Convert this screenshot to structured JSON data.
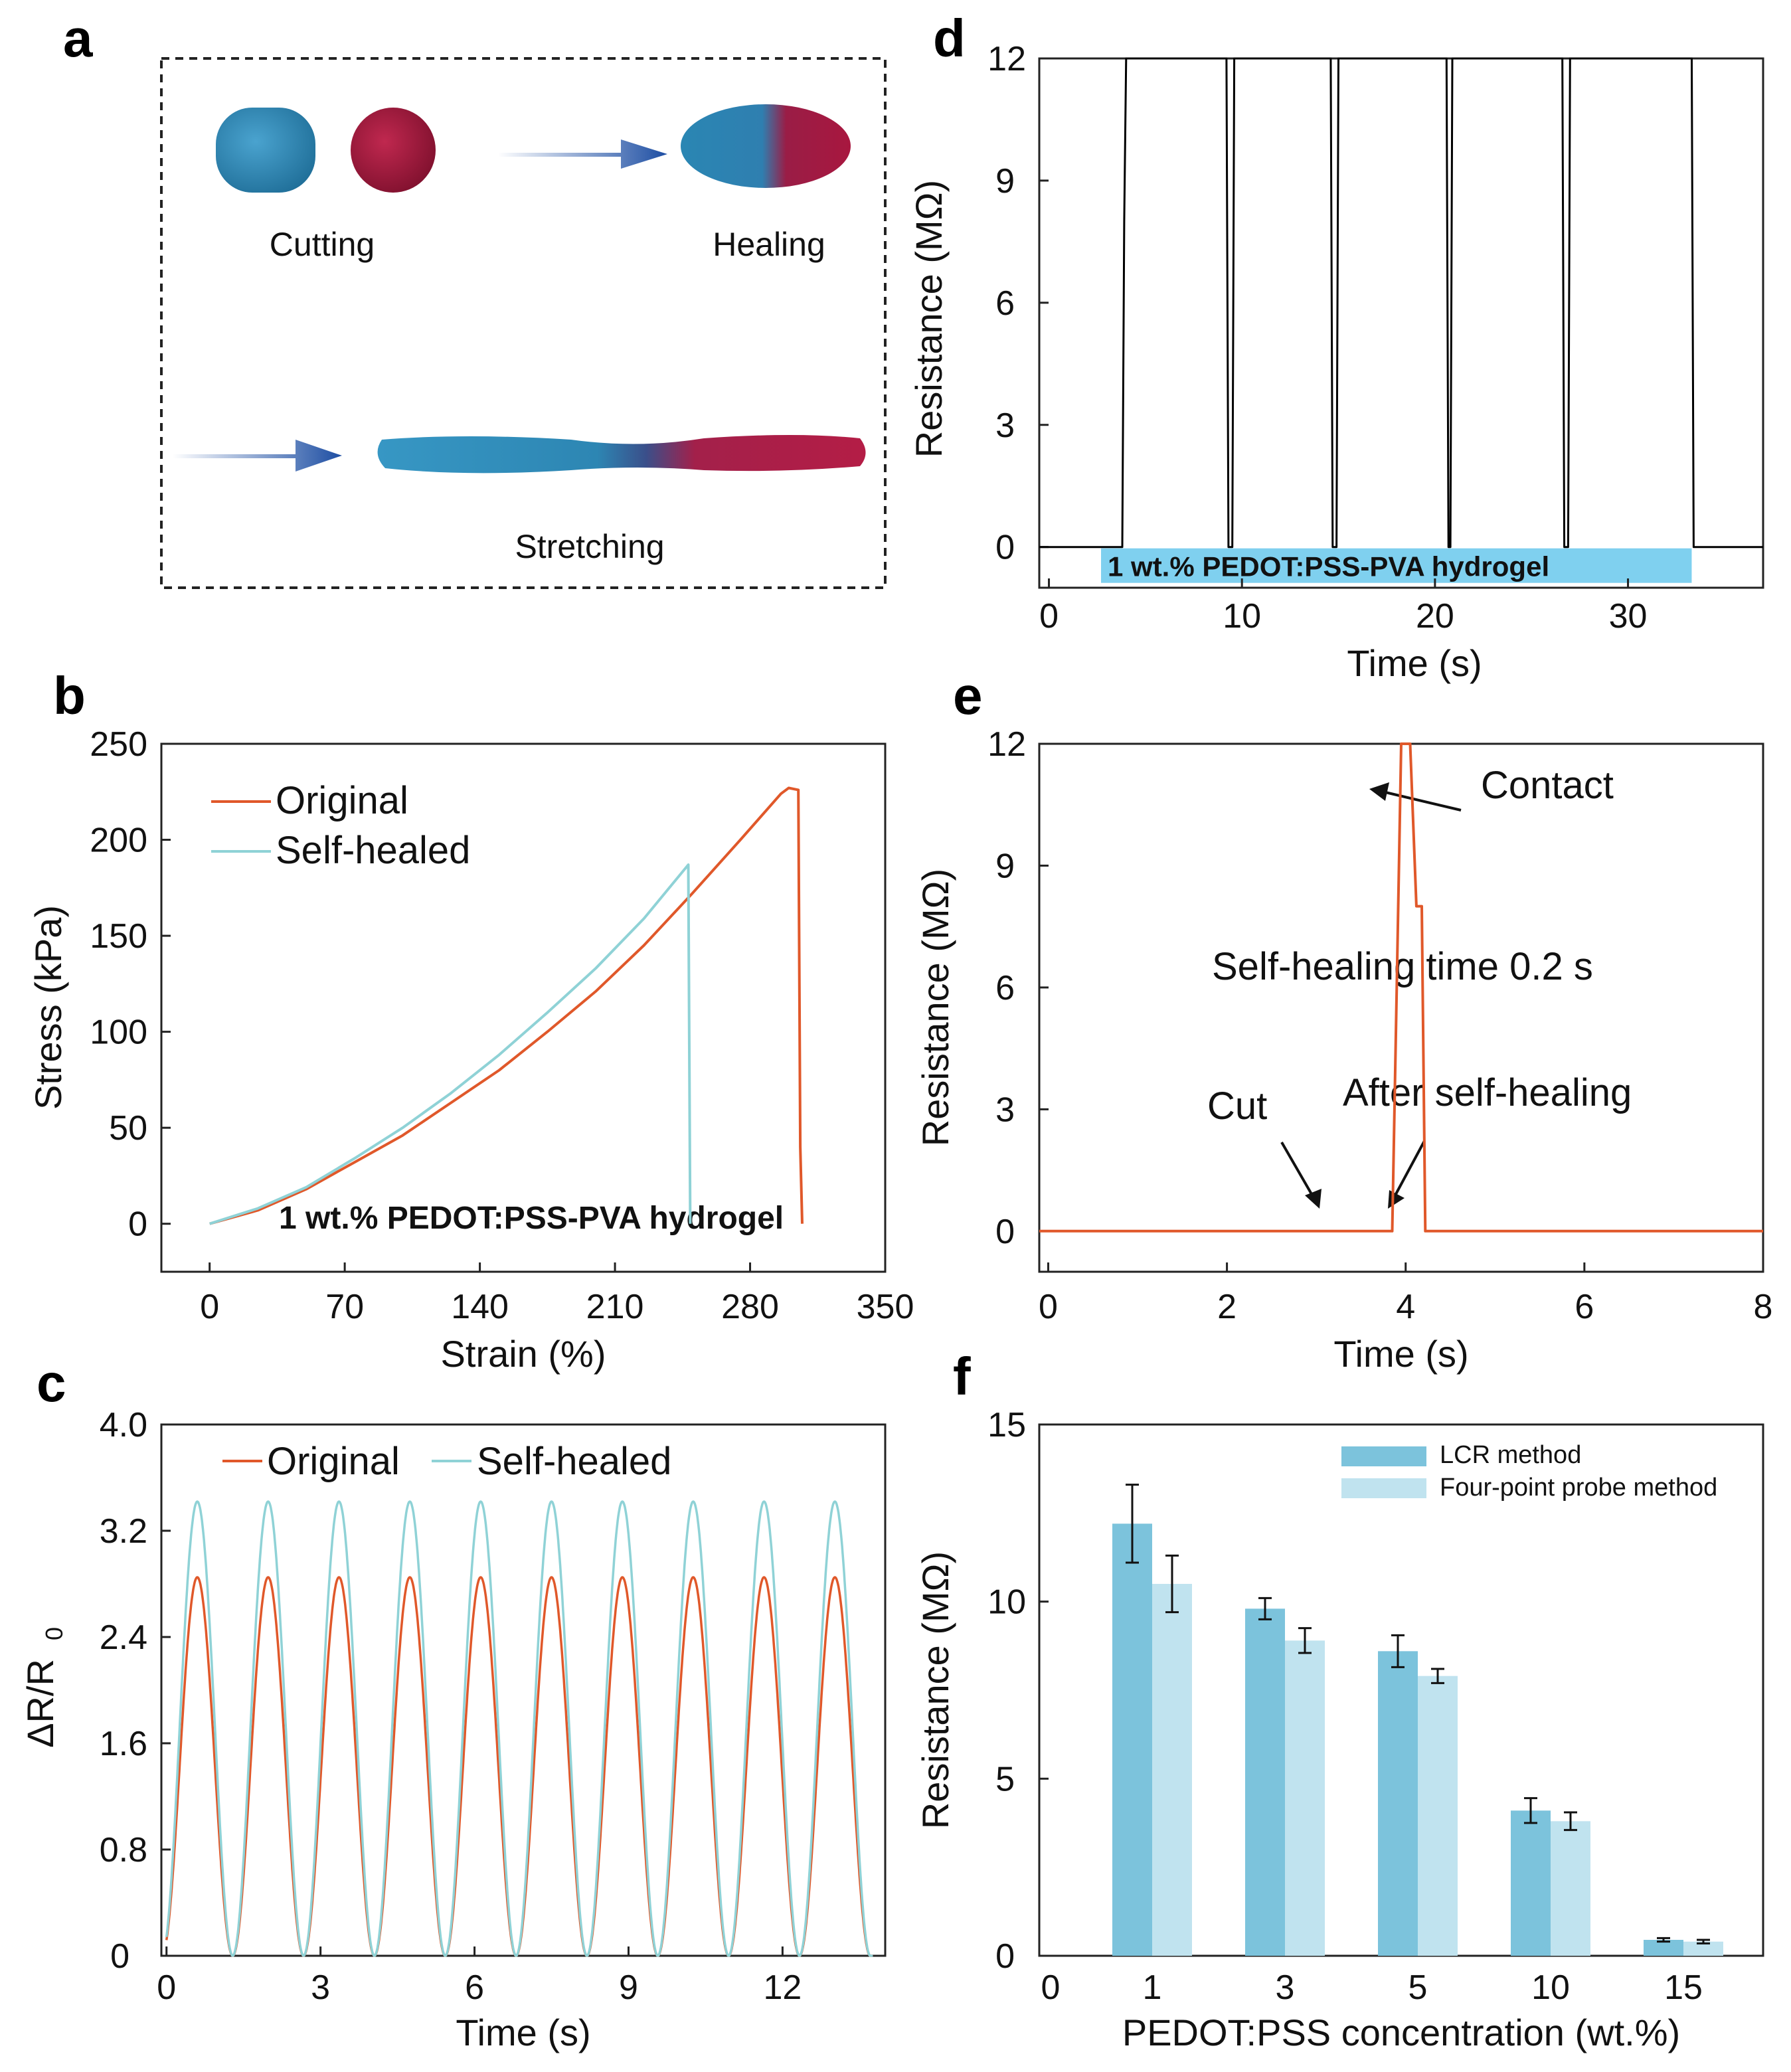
{
  "panel_labels": {
    "a": "a",
    "b": "b",
    "c": "c",
    "d": "d",
    "e": "e",
    "f": "f"
  },
  "photo": {
    "cutting": "Cutting",
    "healing": "Healing",
    "stretching": "Stretching",
    "colors": {
      "blue_gel": "#2a86b3",
      "red_gel": "#a8173f",
      "arrow": "#1d4ea3"
    }
  },
  "chart_data": [
    {
      "id": "b",
      "type": "line",
      "xlabel": "Strain (%)",
      "ylabel": "Stress (kPa)",
      "xlim": [
        -25,
        350
      ],
      "ylim": [
        -25,
        250
      ],
      "xticks": [
        0,
        70,
        140,
        210,
        280,
        350
      ],
      "yticks": [
        0,
        50,
        100,
        150,
        200,
        250
      ],
      "xtick_labels": [
        "0",
        "70",
        "140",
        "210",
        "280",
        "350"
      ],
      "ytick_labels": [
        "0",
        "50",
        "100",
        "150",
        "200",
        "250"
      ],
      "legend": [
        "Original",
        "Self-healed"
      ],
      "annotation": "1 wt.% PEDOT:PSS-PVA hydrogel",
      "series": [
        {
          "name": "Original",
          "color": "#e0582a",
          "points": [
            [
              0,
              0
            ],
            [
              25,
              7
            ],
            [
              50,
              18
            ],
            [
              75,
              32
            ],
            [
              100,
              46
            ],
            [
              125,
              63
            ],
            [
              150,
              80
            ],
            [
              175,
              100
            ],
            [
              200,
              121
            ],
            [
              225,
              145
            ],
            [
              250,
              172
            ],
            [
              275,
              200
            ],
            [
              296,
              224
            ],
            [
              300,
              227
            ],
            [
              305,
              226
            ],
            [
              306,
              40
            ],
            [
              307,
              0
            ]
          ]
        },
        {
          "name": "Self-healed",
          "color": "#8fd2d6",
          "points": [
            [
              0,
              0
            ],
            [
              25,
              8
            ],
            [
              50,
              19
            ],
            [
              75,
              34
            ],
            [
              100,
              50
            ],
            [
              125,
              68
            ],
            [
              150,
              88
            ],
            [
              175,
              110
            ],
            [
              200,
              133
            ],
            [
              225,
              159
            ],
            [
              248,
              187
            ],
            [
              249,
              0
            ]
          ]
        }
      ]
    },
    {
      "id": "c",
      "type": "line",
      "xlabel": "Time (s)",
      "ylabel": "ΔR/R0",
      "ylabel_main": "ΔR/R",
      "ylabel_sub": "0",
      "xlim": [
        -0.1,
        14
      ],
      "ylim": [
        0,
        4.0
      ],
      "xticks": [
        0,
        3,
        6,
        9,
        12
      ],
      "yticks": [
        0,
        0.8,
        1.6,
        2.4,
        3.2,
        4.0
      ],
      "xtick_labels": [
        "0",
        "3",
        "6",
        "9",
        "12"
      ],
      "ytick_labels": [
        "0",
        "0.8",
        "1.6",
        "2.4",
        "3.2",
        "4.0"
      ],
      "legend": [
        "Original",
        "Self-healed"
      ],
      "cycles": 10,
      "period": 1.38,
      "first_peak": 0.6,
      "series": [
        {
          "name": "Original",
          "color": "#e0582a",
          "peak": 2.85
        },
        {
          "name": "Self-healed",
          "color": "#8fd2d6",
          "peak": 3.42
        }
      ]
    },
    {
      "id": "d",
      "type": "line",
      "xlabel": "Time (s)",
      "ylabel": "Resistance (MΩ)",
      "xlim": [
        -0.5,
        37
      ],
      "ylim": [
        -1,
        12
      ],
      "xticks": [
        0,
        10,
        20,
        30
      ],
      "yticks": [
        0,
        3,
        6,
        9,
        12
      ],
      "xtick_labels": [
        "0",
        "10",
        "20",
        "30"
      ],
      "ytick_labels": [
        "0",
        "3",
        "6",
        "9",
        "12"
      ],
      "annotation": "1 wt.% PEDOT:PSS-PVA hydrogel",
      "annotation_color": "#7fd0ef",
      "annotation_xrange": [
        2.7,
        33.3
      ],
      "series": [
        {
          "name": "Resistance",
          "color": "#000000",
          "points": [
            [
              -0.5,
              0
            ],
            [
              3.8,
              0
            ],
            [
              3.9,
              8
            ],
            [
              4.0,
              12
            ],
            [
              9.2,
              12
            ],
            [
              9.3,
              0
            ],
            [
              9.5,
              0
            ],
            [
              9.6,
              12
            ],
            [
              14.6,
              12
            ],
            [
              14.7,
              0
            ],
            [
              14.9,
              0
            ],
            [
              15.0,
              12
            ],
            [
              20.6,
              12
            ],
            [
              20.7,
              0
            ],
            [
              20.8,
              0
            ],
            [
              20.9,
              12
            ],
            [
              26.6,
              12
            ],
            [
              26.7,
              0
            ],
            [
              26.9,
              0
            ],
            [
              27.0,
              12
            ],
            [
              33.3,
              12
            ],
            [
              33.4,
              0
            ],
            [
              37,
              0
            ]
          ]
        }
      ]
    },
    {
      "id": "e",
      "type": "line",
      "xlabel": "Time (s)",
      "ylabel": "Resistance (MΩ)",
      "xlim": [
        -0.1,
        8
      ],
      "ylim": [
        -1,
        12
      ],
      "xticks": [
        0,
        2,
        4,
        6,
        8
      ],
      "yticks": [
        0,
        3,
        6,
        9,
        12
      ],
      "xtick_labels": [
        "0",
        "2",
        "4",
        "6",
        "8"
      ],
      "ytick_labels": [
        "0",
        "3",
        "6",
        "9",
        "12"
      ],
      "annotations": {
        "contact": "Contact",
        "healing_time": "Self-healing time 0.2 s",
        "cut": "Cut",
        "after": "After self-healing"
      },
      "series": [
        {
          "name": "Resistance",
          "color": "#e0582a",
          "points": [
            [
              -0.1,
              0
            ],
            [
              3.85,
              0
            ],
            [
              3.9,
              6
            ],
            [
              3.95,
              12
            ],
            [
              4.05,
              12
            ],
            [
              4.12,
              8
            ],
            [
              4.18,
              8
            ],
            [
              4.22,
              0
            ],
            [
              8,
              0
            ]
          ]
        }
      ]
    },
    {
      "id": "f",
      "type": "bar",
      "xlabel": "PEDOT:PSS concentration (wt.%)",
      "ylabel": "Resistance (MΩ)",
      "ylim": [
        0,
        15
      ],
      "yticks": [
        0,
        5,
        10,
        15
      ],
      "ytick_labels": [
        "0",
        "5",
        "10",
        "15"
      ],
      "x_zero_label": "0",
      "categories": [
        "1",
        "3",
        "5",
        "10",
        "15"
      ],
      "series": [
        {
          "name": "LCR method",
          "color": "#7cc3dc",
          "values": [
            12.2,
            9.8,
            8.6,
            4.1,
            0.45
          ],
          "errors": [
            1.1,
            0.3,
            0.45,
            0.35,
            0.05
          ]
        },
        {
          "name": "Four-point probe method",
          "color": "#c0e3ef",
          "values": [
            10.5,
            8.9,
            7.9,
            3.8,
            0.4
          ],
          "errors": [
            0.8,
            0.35,
            0.2,
            0.25,
            0.05
          ]
        }
      ]
    }
  ]
}
